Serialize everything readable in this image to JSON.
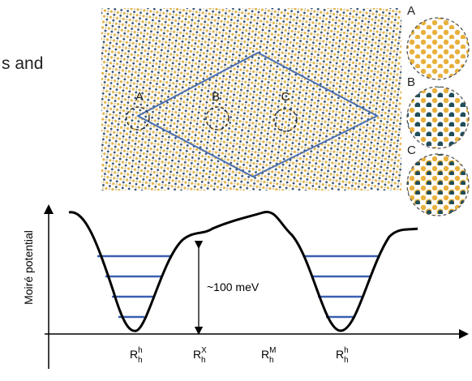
{
  "side_text": "s and",
  "lattice": {
    "labels": [
      "A",
      "B",
      "C"
    ]
  },
  "insets": {
    "labels": [
      "A",
      "B",
      "C"
    ]
  },
  "plot": {
    "ylabel": "Moiré potential",
    "annotation": "~100 meV",
    "xlabels": [
      {
        "base": "R",
        "sub": "h",
        "sup": "h"
      },
      {
        "base": "R",
        "sub": "h",
        "sup": "X"
      },
      {
        "base": "R",
        "sub": "h",
        "sup": "M"
      },
      {
        "base": "R",
        "sub": "h",
        "sup": "h"
      }
    ]
  }
}
